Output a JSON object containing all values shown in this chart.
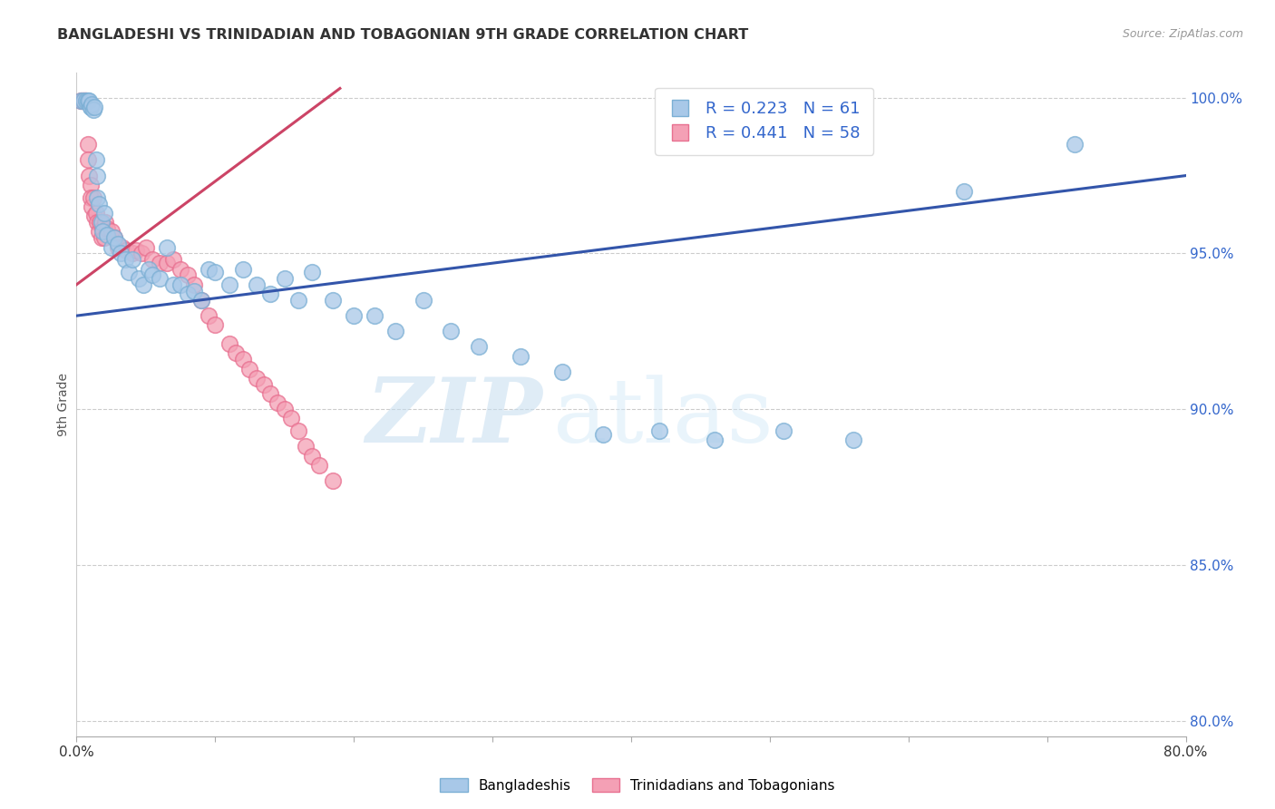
{
  "title": "BANGLADESHI VS TRINIDADIAN AND TOBAGONIAN 9TH GRADE CORRELATION CHART",
  "source": "Source: ZipAtlas.com",
  "ylabel": "9th Grade",
  "xlabel": "",
  "xlim": [
    0.0,
    0.8
  ],
  "ylim": [
    0.795,
    1.008
  ],
  "xticks": [
    0.0,
    0.1,
    0.2,
    0.3,
    0.4,
    0.5,
    0.6,
    0.7,
    0.8
  ],
  "xticklabels": [
    "0.0%",
    "",
    "",
    "",
    "",
    "",
    "",
    "",
    "80.0%"
  ],
  "yticks": [
    0.8,
    0.85,
    0.9,
    0.95,
    1.0
  ],
  "yticklabels": [
    "80.0%",
    "85.0%",
    "90.0%",
    "95.0%",
    "100.0%"
  ],
  "blue_R": 0.223,
  "blue_N": 61,
  "pink_R": 0.441,
  "pink_N": 58,
  "blue_color": "#a8c8e8",
  "pink_color": "#f4a0b5",
  "blue_edge_color": "#7bafd4",
  "pink_edge_color": "#e87090",
  "blue_line_color": "#3355aa",
  "pink_line_color": "#cc4466",
  "legend1_label": "Bangladeshis",
  "legend2_label": "Trinidadians and Tobagonians",
  "watermark_zip": "ZIP",
  "watermark_atlas": "atlas",
  "blue_x": [
    0.003,
    0.005,
    0.007,
    0.008,
    0.009,
    0.01,
    0.01,
    0.011,
    0.012,
    0.013,
    0.014,
    0.015,
    0.015,
    0.016,
    0.018,
    0.019,
    0.02,
    0.022,
    0.025,
    0.027,
    0.03,
    0.032,
    0.035,
    0.038,
    0.04,
    0.045,
    0.048,
    0.052,
    0.055,
    0.06,
    0.065,
    0.07,
    0.075,
    0.08,
    0.085,
    0.09,
    0.095,
    0.1,
    0.11,
    0.12,
    0.13,
    0.14,
    0.15,
    0.16,
    0.17,
    0.185,
    0.2,
    0.215,
    0.23,
    0.25,
    0.27,
    0.29,
    0.32,
    0.35,
    0.38,
    0.42,
    0.46,
    0.51,
    0.56,
    0.64,
    0.72
  ],
  "blue_y": [
    0.999,
    0.999,
    0.999,
    0.999,
    0.999,
    0.997,
    0.997,
    0.998,
    0.996,
    0.997,
    0.98,
    0.975,
    0.968,
    0.966,
    0.96,
    0.957,
    0.963,
    0.956,
    0.952,
    0.955,
    0.953,
    0.95,
    0.948,
    0.944,
    0.948,
    0.942,
    0.94,
    0.945,
    0.943,
    0.942,
    0.952,
    0.94,
    0.94,
    0.937,
    0.938,
    0.935,
    0.945,
    0.944,
    0.94,
    0.945,
    0.94,
    0.937,
    0.942,
    0.935,
    0.944,
    0.935,
    0.93,
    0.93,
    0.925,
    0.935,
    0.925,
    0.92,
    0.917,
    0.912,
    0.892,
    0.893,
    0.89,
    0.893,
    0.89,
    0.97,
    0.985
  ],
  "pink_x": [
    0.003,
    0.004,
    0.005,
    0.005,
    0.006,
    0.006,
    0.007,
    0.008,
    0.008,
    0.009,
    0.01,
    0.01,
    0.011,
    0.012,
    0.013,
    0.014,
    0.015,
    0.016,
    0.017,
    0.018,
    0.019,
    0.02,
    0.021,
    0.022,
    0.025,
    0.027,
    0.03,
    0.033,
    0.036,
    0.04,
    0.043,
    0.047,
    0.05,
    0.055,
    0.06,
    0.065,
    0.07,
    0.075,
    0.08,
    0.085,
    0.09,
    0.095,
    0.1,
    0.11,
    0.115,
    0.12,
    0.125,
    0.13,
    0.135,
    0.14,
    0.145,
    0.15,
    0.155,
    0.16,
    0.165,
    0.17,
    0.175,
    0.185
  ],
  "pink_y": [
    0.999,
    0.999,
    0.999,
    0.999,
    0.999,
    0.999,
    0.999,
    0.985,
    0.98,
    0.975,
    0.972,
    0.968,
    0.965,
    0.968,
    0.962,
    0.963,
    0.96,
    0.957,
    0.96,
    0.955,
    0.958,
    0.955,
    0.96,
    0.958,
    0.957,
    0.955,
    0.952,
    0.952,
    0.951,
    0.95,
    0.951,
    0.95,
    0.952,
    0.948,
    0.947,
    0.947,
    0.948,
    0.945,
    0.943,
    0.94,
    0.935,
    0.93,
    0.927,
    0.921,
    0.918,
    0.916,
    0.913,
    0.91,
    0.908,
    0.905,
    0.902,
    0.9,
    0.897,
    0.893,
    0.888,
    0.885,
    0.882,
    0.877
  ],
  "blue_line_x": [
    0.0,
    0.8
  ],
  "blue_line_y": [
    0.93,
    0.975
  ],
  "pink_line_x": [
    0.0,
    0.19
  ],
  "pink_line_y": [
    0.94,
    1.003
  ]
}
